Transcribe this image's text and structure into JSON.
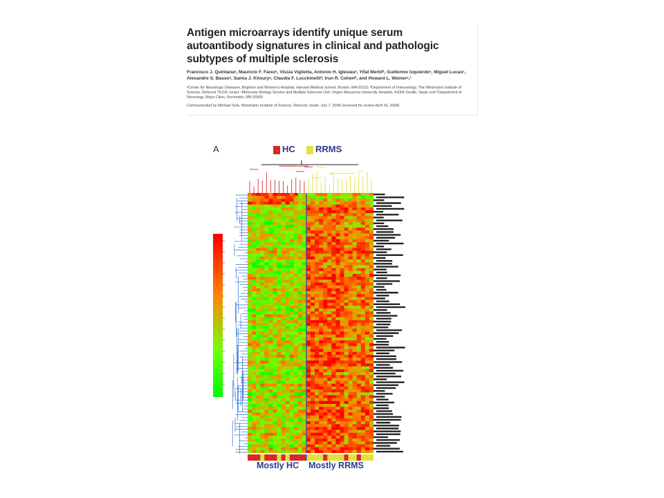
{
  "article": {
    "title": "Antigen microarrays identify unique serum autoantibody signatures in clinical and pathologic subtypes of multiple sclerosis",
    "authors": "Francisco J. Quintanaᵃ, Mauricio F. Farezᵃ, Vissia Viglietta, Antonio H. Iglesiasᵃ, Yifat Merblᵇ, Guillermo Izquierdoᶜ, Miguel Lucasᶜ, Alexandre S. Bassoᵃ, Samia J. Khouryᵃ, Claudia F. Lucchinettiᵈ, Irun R. Cohenᵇ, and Howard L. Weinerᵃ,¹",
    "affiliations": "ᵃCenter for Neurologic Diseases, Brigham and Women's Hospital, Harvard Medical School, Boston, MA 02115; ᵇDepartment of Immunology, The Weizmann Institute of Science, Rehovot 76100, Israel; ᶜMolecular Biology Service and Multiple Sclerosis Unit, Virgen Macarena University Hospital, 41009 Seville, Spain and ᵈDepartment of Neurology, Mayo Clinic, Rochester, MN 55905",
    "communicated": "Communicated by Michael Sela, Weizmann Institute of Science, Rehovot, Israel, July 7, 2008 (received for review April 16, 2008)"
  },
  "figure": {
    "panel_label": "A",
    "legend": [
      {
        "label": "HC",
        "color": "#d62a2a"
      },
      {
        "label": "RRMS",
        "color": "#e3e23a"
      }
    ],
    "bottom_labels": [
      "Mostly HC",
      "Mostly RRMS"
    ],
    "colors": {
      "high": "#ff0000",
      "low": "#00ff00",
      "dendrogram_left": "#2f6fd1",
      "separator": "#1a4cc0",
      "label_text": "#2a3a8c"
    }
  },
  "chart_data": {
    "type": "heatmap",
    "columns": 30,
    "rows": 90,
    "color_scale": [
      "green",
      "red"
    ],
    "column_groups": [
      "HC",
      "RRMS"
    ],
    "cluster_split": "Mostly HC | Mostly RRMS"
  }
}
